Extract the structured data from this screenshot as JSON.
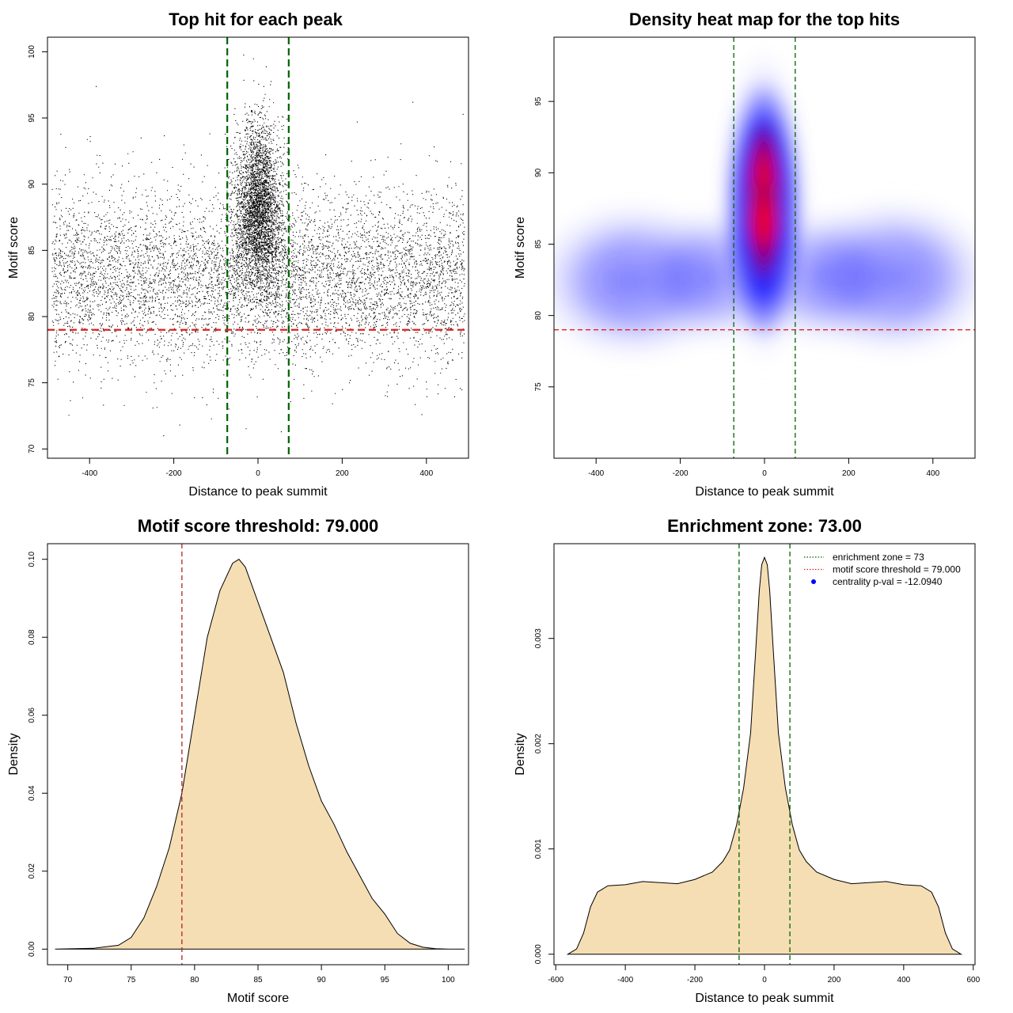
{
  "chart_data": [
    {
      "type": "scatter",
      "title": "Top hit for each peak",
      "xlabel": "Distance to peak summit",
      "ylabel": "Motif score",
      "xlim": [
        -500,
        500
      ],
      "ylim": [
        69.3,
        101.1
      ],
      "xticks": [
        "-400",
        "-200",
        "0",
        "200",
        "400"
      ],
      "yticks": [
        "70",
        "75",
        "80",
        "85",
        "90",
        "95",
        "100"
      ],
      "hlines": [
        79
      ],
      "vlines": [
        -73,
        73
      ],
      "hline_color": "#e02020",
      "vline_color": "#006400",
      "point_color": "#000000",
      "distribution": {
        "background_x_range": [
          -490,
          490
        ],
        "background_score_mean": 83,
        "central_score_mean": 88,
        "central_x_sd": 27
      }
    },
    {
      "type": "heatmap",
      "title": "Density heat map for the top hits",
      "xlabel": "Distance to peak summit",
      "ylabel": "Motif score",
      "xlim": [
        -500,
        500
      ],
      "ylim": [
        70,
        99.5
      ],
      "xticks": [
        "-400",
        "-200",
        "0",
        "200",
        "400"
      ],
      "yticks": [
        "75",
        "80",
        "85",
        "90",
        "95"
      ],
      "hlines": [
        79
      ],
      "vlines": [
        -73,
        73
      ],
      "hline_color": "#e02020",
      "vline_color": "#006400",
      "colors": [
        "#ffffff",
        "#0000ff",
        "#ff0000"
      ]
    },
    {
      "type": "area",
      "title": "Motif score threshold: 79.000",
      "xlabel": "Motif score",
      "ylabel": "Density",
      "xlim": [
        68.4,
        101.6
      ],
      "ylim": [
        -0.004,
        0.104
      ],
      "xticks": [
        "70",
        "75",
        "80",
        "85",
        "90",
        "95",
        "100"
      ],
      "yticks": [
        "0.00",
        "0.02",
        "0.04",
        "0.06",
        "0.08",
        "0.10"
      ],
      "vlines": [
        79
      ],
      "vline_color": "#b22222",
      "fill_color": "#f5deb3",
      "x": [
        69,
        72,
        74,
        75,
        76,
        77,
        78,
        79,
        80,
        81,
        82,
        83,
        83.5,
        84,
        85,
        86,
        87,
        88,
        89,
        90,
        91,
        92,
        93,
        94,
        95,
        96,
        97,
        98,
        99,
        100,
        101.3
      ],
      "y": [
        0.0,
        0.0002,
        0.001,
        0.003,
        0.008,
        0.016,
        0.026,
        0.04,
        0.06,
        0.08,
        0.092,
        0.099,
        0.1,
        0.098,
        0.089,
        0.08,
        0.071,
        0.058,
        0.047,
        0.038,
        0.032,
        0.025,
        0.019,
        0.013,
        0.009,
        0.004,
        0.0015,
        0.0005,
        0.0001,
        0.0,
        0.0
      ]
    },
    {
      "type": "area",
      "title": "Enrichment zone: 73.00",
      "xlabel": "Distance to peak summit",
      "ylabel": "Density",
      "xlim": [
        -605,
        605
      ],
      "ylim": [
        -0.0001,
        0.0039
      ],
      "xticks": [
        "-600",
        "-400",
        "-200",
        "0",
        "200",
        "400",
        "600"
      ],
      "yticks": [
        "0.000",
        "0.001",
        "0.002",
        "0.003"
      ],
      "vlines": [
        -73,
        73
      ],
      "vline_color": "#006400",
      "fill_color": "#f5deb3",
      "x": [
        -565,
        -540,
        -520,
        -500,
        -480,
        -450,
        -400,
        -350,
        -300,
        -250,
        -200,
        -150,
        -120,
        -100,
        -80,
        -60,
        -40,
        -25,
        -15,
        -8,
        0,
        8,
        15,
        25,
        40,
        60,
        80,
        100,
        120,
        150,
        200,
        250,
        300,
        350,
        400,
        450,
        480,
        500,
        520,
        540,
        565
      ],
      "y": [
        0.0,
        5e-05,
        0.0002,
        0.00045,
        0.00059,
        0.00065,
        0.00066,
        0.00069,
        0.00068,
        0.00067,
        0.00071,
        0.00078,
        0.00088,
        0.00099,
        0.00123,
        0.00158,
        0.0021,
        0.0029,
        0.00345,
        0.0037,
        0.00377,
        0.0037,
        0.00345,
        0.0029,
        0.0021,
        0.00158,
        0.00123,
        0.00099,
        0.00088,
        0.00078,
        0.00071,
        0.00067,
        0.00068,
        0.00069,
        0.00066,
        0.00065,
        0.00059,
        0.00045,
        0.0002,
        5e-05,
        0.0
      ],
      "legend": [
        {
          "label": "enrichment zone = 73",
          "style": "dotted-line",
          "color": "#006400"
        },
        {
          "label": "motif score threshold = 79.000",
          "style": "dotted-line",
          "color": "#e02020"
        },
        {
          "label": "centrality p-val = -12.0940",
          "style": "point",
          "color": "#0000ff"
        }
      ],
      "legend_position": "top-right"
    }
  ]
}
